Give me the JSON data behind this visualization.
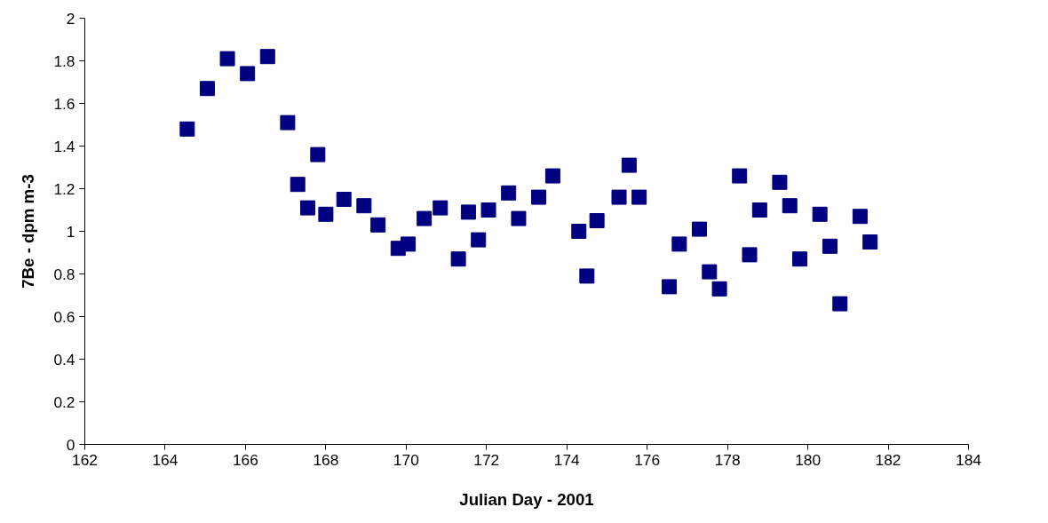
{
  "chart_data": {
    "type": "scatter",
    "xlabel": "Julian Day - 2001",
    "ylabel": "7Be - dpm m-3",
    "x": [
      164.55,
      165.05,
      165.55,
      166.05,
      166.55,
      167.05,
      167.3,
      167.55,
      167.8,
      168.0,
      168.45,
      168.95,
      169.3,
      169.8,
      170.05,
      170.45,
      170.85,
      171.3,
      171.55,
      171.8,
      172.05,
      172.55,
      172.8,
      173.3,
      173.65,
      174.3,
      174.5,
      174.75,
      175.3,
      175.55,
      175.8,
      176.55,
      176.8,
      177.3,
      177.55,
      177.8,
      178.3,
      178.55,
      178.8,
      179.3,
      179.55,
      179.8,
      180.3,
      180.55,
      180.8,
      181.3,
      181.55
    ],
    "series": [
      {
        "color": "#000080",
        "values": [
          1.48,
          1.67,
          1.81,
          1.74,
          1.82,
          1.51,
          1.22,
          1.11,
          1.36,
          1.08,
          1.15,
          1.12,
          1.03,
          0.92,
          0.94,
          1.06,
          1.11,
          0.87,
          1.09,
          0.96,
          1.1,
          1.18,
          1.06,
          1.16,
          1.26,
          1.0,
          0.79,
          1.05,
          1.16,
          1.31,
          1.16,
          0.74,
          0.94,
          1.01,
          0.81,
          0.73,
          1.26,
          0.89,
          1.1,
          1.23,
          1.12,
          0.87,
          1.08,
          0.93,
          0.66,
          1.07,
          0.95
        ]
      }
    ],
    "marker": "square",
    "xlim": [
      162,
      184
    ],
    "xticks": [
      162,
      164,
      166,
      168,
      170,
      172,
      174,
      176,
      178,
      180,
      182,
      184
    ],
    "ylim": [
      0,
      2
    ],
    "yticks": [
      0,
      {
        "value": 0.2,
        "label": "0.2"
      },
      {
        "value": 0.4,
        "label": "0.4"
      },
      {
        "value": 0.6,
        "label": "0.6"
      },
      {
        "value": 0.8,
        "label": "0.8"
      },
      1,
      {
        "value": 1.2,
        "label": "1.2"
      },
      {
        "value": 1.4,
        "label": "1.4"
      },
      {
        "value": 1.6,
        "label": "1.6"
      },
      {
        "value": 1.8,
        "label": "1.8"
      },
      2
    ],
    "grid": false
  }
}
